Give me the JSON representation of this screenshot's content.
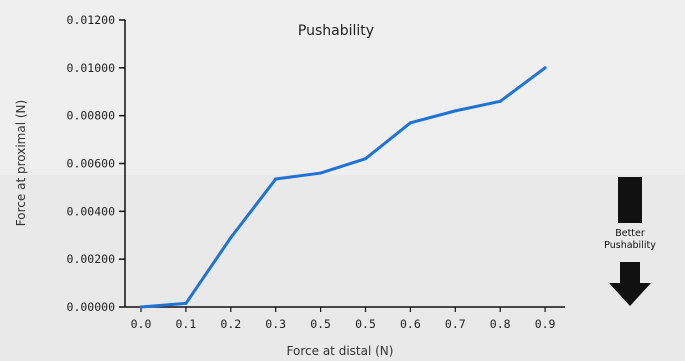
{
  "chart_data": {
    "type": "line",
    "title": "Pushability",
    "xlabel": "Force at distal (N)",
    "ylabel": "Force at proximal (N)",
    "categories": [
      "0.0",
      "0.1",
      "0.2",
      "0.3",
      "0.5",
      "0.5",
      "0.6",
      "0.7",
      "0.8",
      "0.9"
    ],
    "series": [
      {
        "values": [
          0.0,
          0.00015,
          0.0029,
          0.00535,
          0.0056,
          0.0062,
          0.0077,
          0.0082,
          0.0086,
          0.01
        ],
        "color": "#1f73d6"
      }
    ],
    "yticks": [
      "0.00000",
      "0.00200",
      "0.00400",
      "0.00600",
      "0.00800",
      "0.01000",
      "0.01200"
    ],
    "ylim": [
      0,
      0.012
    ],
    "grid": false,
    "legend": "none"
  },
  "annotation": {
    "text_line1": "Better",
    "text_line2": "Pushability"
  }
}
